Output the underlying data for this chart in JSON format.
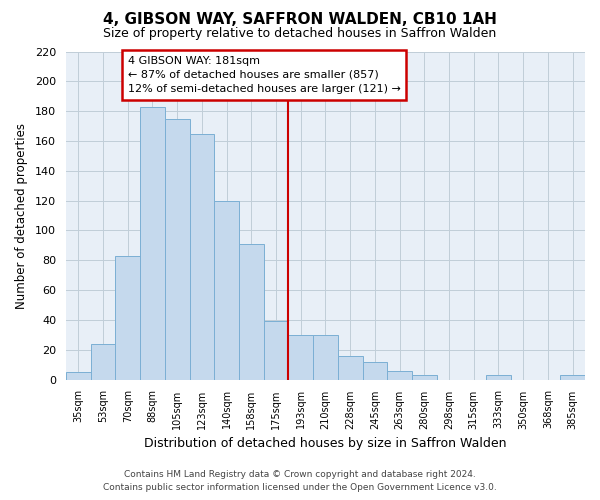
{
  "title": "4, GIBSON WAY, SAFFRON WALDEN, CB10 1AH",
  "subtitle": "Size of property relative to detached houses in Saffron Walden",
  "xlabel": "Distribution of detached houses by size in Saffron Walden",
  "ylabel": "Number of detached properties",
  "categories": [
    "35sqm",
    "53sqm",
    "70sqm",
    "88sqm",
    "105sqm",
    "123sqm",
    "140sqm",
    "158sqm",
    "175sqm",
    "193sqm",
    "210sqm",
    "228sqm",
    "245sqm",
    "263sqm",
    "280sqm",
    "298sqm",
    "315sqm",
    "333sqm",
    "350sqm",
    "368sqm",
    "385sqm"
  ],
  "values": [
    5,
    24,
    83,
    183,
    175,
    165,
    120,
    91,
    39,
    30,
    30,
    16,
    12,
    6,
    3,
    0,
    0,
    3,
    0,
    0,
    3
  ],
  "bar_color": "#c5d9ed",
  "bar_edge_color": "#7bafd4",
  "reference_line_x": 8.5,
  "annotation_text_line1": "4 GIBSON WAY: 181sqm",
  "annotation_text_line2": "← 87% of detached houses are smaller (857)",
  "annotation_text_line3": "12% of semi-detached houses are larger (121) →",
  "ylim": [
    0,
    220
  ],
  "yticks": [
    0,
    20,
    40,
    60,
    80,
    100,
    120,
    140,
    160,
    180,
    200,
    220
  ],
  "footer_line1": "Contains HM Land Registry data © Crown copyright and database right 2024.",
  "footer_line2": "Contains public sector information licensed under the Open Government Licence v3.0.",
  "bg_color": "#ffffff",
  "plot_bg_color": "#e8eff7",
  "grid_color": "#c0cdd8",
  "annotation_box_color": "#ffffff",
  "annotation_box_edge": "#cc0000",
  "ref_line_color": "#cc0000"
}
